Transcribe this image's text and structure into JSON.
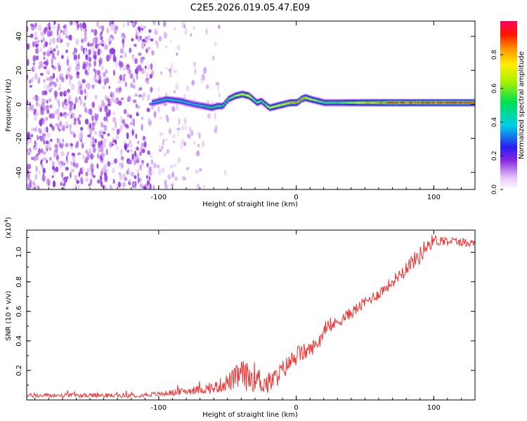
{
  "figure_title": "C2E5.2026.019.05.47.E09",
  "chart_data": [
    {
      "type": "heatmap",
      "title": "C2E5.2026.019.05.47.E09",
      "xlabel": "Height of straight line (km)",
      "ylabel": "Frequency (Hz)",
      "xlim": [
        -196,
        130
      ],
      "ylim": [
        -50,
        49
      ],
      "xticks": [
        -100,
        0,
        100
      ],
      "xtick_labels": [
        "-100",
        "0",
        "100"
      ],
      "yticks": [
        -40,
        -20,
        0,
        20,
        40
      ],
      "ytick_labels": [
        "-40",
        "-20",
        "0",
        "20",
        "40"
      ],
      "colorbar": {
        "label": "Normalized spectral amplitude",
        "range": [
          0,
          1
        ],
        "ticks": [
          0.0,
          0.2,
          0.4,
          0.6,
          0.8
        ],
        "tick_labels": [
          "0.0",
          "0.2",
          "0.4",
          "0.6",
          "0.8"
        ]
      },
      "ridge": {
        "x": [
          -105,
          -95,
          -85,
          -75,
          -68,
          -62,
          -58,
          -54,
          -50,
          -45,
          -40,
          -35,
          -32,
          -29,
          -26,
          -23,
          -20,
          -15,
          -10,
          -5,
          0,
          3,
          6,
          10,
          15,
          20,
          30,
          50,
          70,
          90,
          110,
          130
        ],
        "frequency": [
          1,
          3,
          2,
          0,
          -1,
          -2,
          -1,
          -1,
          3,
          5,
          6,
          5,
          3,
          1,
          2,
          0,
          -2,
          -1,
          0,
          1,
          1,
          3,
          4,
          3,
          2,
          1,
          1,
          1,
          1,
          1,
          1,
          1
        ],
        "amplitude": [
          0.4,
          0.45,
          0.45,
          0.4,
          0.45,
          0.5,
          0.55,
          0.5,
          0.55,
          0.65,
          0.75,
          0.8,
          0.6,
          0.6,
          0.55,
          0.55,
          0.7,
          0.75,
          0.8,
          0.85,
          0.85,
          0.9,
          0.85,
          0.7,
          0.6,
          0.55,
          0.55,
          0.8,
          0.92,
          0.9,
          0.95,
          0.92
        ]
      }
    },
    {
      "type": "line",
      "xlabel": "Height of straight line (km)",
      "ylabel": "SNR (10 * v/v)",
      "multiplier_label": "(x10",
      "multiplier_exponent": "4",
      "xlim": [
        -196,
        130
      ],
      "ylim": [
        0,
        1.15
      ],
      "xticks": [
        -100,
        0,
        100
      ],
      "xtick_labels": [
        "-100",
        "0",
        "100"
      ],
      "yticks": [
        0.2,
        0.4,
        0.6,
        0.8,
        1.0
      ],
      "ytick_labels": [
        "0.2",
        "0.4",
        "0.6",
        "0.8",
        "1.0"
      ],
      "color": "#ee3333",
      "series": [
        {
          "name": "SNR",
          "x": [
            -196,
            -150,
            -120,
            -100,
            -90,
            -80,
            -70,
            -60,
            -55,
            -50,
            -45,
            -40,
            -35,
            -30,
            -25,
            -20,
            -15,
            -10,
            -5,
            0,
            5,
            10,
            15,
            20,
            30,
            40,
            50,
            60,
            70,
            80,
            90,
            95,
            100,
            110,
            120,
            130
          ],
          "y": [
            0.03,
            0.03,
            0.03,
            0.04,
            0.05,
            0.06,
            0.07,
            0.08,
            0.1,
            0.12,
            0.14,
            0.18,
            0.15,
            0.16,
            0.12,
            0.11,
            0.15,
            0.2,
            0.25,
            0.3,
            0.32,
            0.34,
            0.38,
            0.46,
            0.53,
            0.59,
            0.66,
            0.72,
            0.8,
            0.9,
            0.98,
            1.05,
            1.08,
            1.08,
            1.07,
            1.06
          ],
          "noise": [
            0.015,
            0.015,
            0.015,
            0.015,
            0.02,
            0.025,
            0.03,
            0.04,
            0.05,
            0.06,
            0.08,
            0.1,
            0.1,
            0.1,
            0.08,
            0.08,
            0.07,
            0.07,
            0.06,
            0.07,
            0.06,
            0.05,
            0.05,
            0.04,
            0.04,
            0.04,
            0.04,
            0.04,
            0.04,
            0.05,
            0.06,
            0.07,
            0.04,
            0.03,
            0.03,
            0.03
          ]
        }
      ]
    }
  ]
}
